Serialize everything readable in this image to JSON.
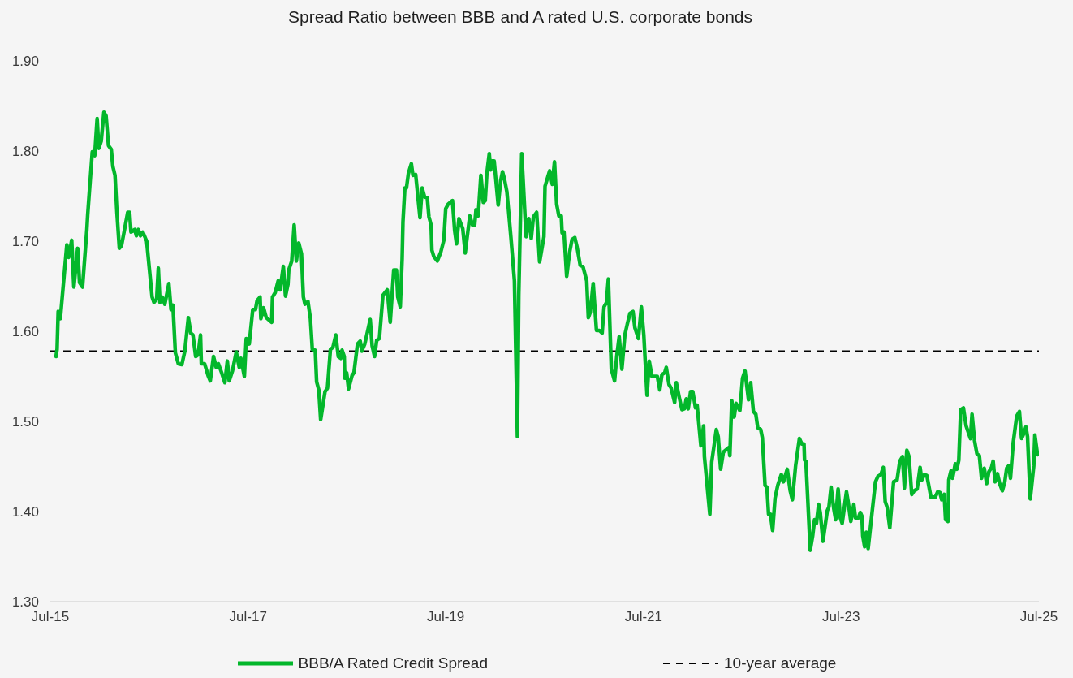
{
  "chart_data": {
    "type": "line",
    "title": "Spread Ratio between BBB and A rated U.S. corporate bonds",
    "x": [
      "2015-07-22",
      "2015-07-26",
      "2015-07-30",
      "2015-08-07",
      "2015-08-31",
      "2015-09-07",
      "2015-09-18",
      "2015-09-26",
      "2015-10-10",
      "2015-10-17",
      "2015-10-28",
      "2015-11-13",
      "2015-11-16",
      "2015-12-03",
      "2015-12-12",
      "2015-12-21",
      "2015-12-27",
      "2016-01-05",
      "2016-01-15",
      "2016-01-23",
      "2016-02-01",
      "2016-02-11",
      "2016-02-17",
      "2016-02-25",
      "2016-03-03",
      "2016-03-12",
      "2016-03-20",
      "2016-04-12",
      "2016-04-19",
      "2016-04-24",
      "2016-05-08",
      "2016-05-14",
      "2016-05-21",
      "2016-05-29",
      "2016-06-07",
      "2016-06-21",
      "2016-07-11",
      "2016-07-18",
      "2016-07-28",
      "2016-08-03",
      "2016-08-09",
      "2016-08-17",
      "2016-08-27",
      "2016-09-11",
      "2016-09-19",
      "2016-09-26",
      "2016-10-05",
      "2016-10-16",
      "2016-10-29",
      "2016-11-09",
      "2016-11-22",
      "2016-12-01",
      "2016-12-09",
      "2016-12-19",
      "2016-12-28",
      "2017-01-06",
      "2017-01-09",
      "2017-01-21",
      "2017-02-04",
      "2017-02-11",
      "2017-02-23",
      "2017-03-05",
      "2017-03-13",
      "2017-03-25",
      "2017-04-06",
      "2017-04-15",
      "2017-04-22",
      "2017-05-04",
      "2017-05-18",
      "2017-05-29",
      "2017-06-04",
      "2017-06-17",
      "2017-06-24",
      "2017-07-05",
      "2017-07-18",
      "2017-07-28",
      "2017-08-03",
      "2017-08-14",
      "2017-08-17",
      "2017-08-27",
      "2017-09-06",
      "2017-09-26",
      "2017-09-29",
      "2017-10-09",
      "2017-10-20",
      "2017-10-27",
      "2017-11-08",
      "2017-11-16",
      "2017-11-25",
      "2017-11-28",
      "2017-12-09",
      "2017-12-18",
      "2017-12-26",
      "2018-01-04",
      "2018-01-14",
      "2018-01-21",
      "2018-01-27",
      "2018-02-07",
      "2018-02-16",
      "2018-02-23",
      "2018-03-06",
      "2018-03-11",
      "2018-03-19",
      "2018-03-26",
      "2018-04-11",
      "2018-04-20",
      "2018-05-01",
      "2018-05-10",
      "2018-05-21",
      "2018-05-30",
      "2018-06-08",
      "2018-06-13",
      "2018-06-21",
      "2018-06-23",
      "2018-06-30",
      "2018-07-07",
      "2018-07-20",
      "2018-07-27",
      "2018-08-09",
      "2018-08-19",
      "2018-08-25",
      "2018-09-05",
      "2018-09-25",
      "2018-10-02",
      "2018-10-11",
      "2018-10-19",
      "2018-10-29",
      "2018-11-11",
      "2018-11-27",
      "2018-12-08",
      "2018-12-21",
      "2018-12-31",
      "2019-01-05",
      "2019-01-14",
      "2019-01-21",
      "2019-01-24",
      "2019-01-31",
      "2019-02-06",
      "2019-02-13",
      "2019-02-24",
      "2019-03-02",
      "2019-03-12",
      "2019-03-28",
      "2019-04-05",
      "2019-04-14",
      "2019-04-24",
      "2019-04-30",
      "2019-05-08",
      "2019-05-11",
      "2019-05-18",
      "2019-05-31",
      "2019-06-13",
      "2019-06-24",
      "2019-07-01",
      "2019-07-10",
      "2019-07-26",
      "2019-08-03",
      "2019-08-10",
      "2019-08-19",
      "2019-09-02",
      "2019-09-11",
      "2019-09-28",
      "2019-10-08",
      "2019-10-16",
      "2019-10-21",
      "2019-10-29",
      "2019-11-08",
      "2019-11-17",
      "2019-11-24",
      "2019-11-30",
      "2019-12-09",
      "2019-12-14",
      "2019-12-19",
      "2019-12-27",
      "2020-01-11",
      "2020-01-20",
      "2020-01-27",
      "2020-02-03",
      "2020-02-12",
      "2020-02-27",
      "2020-03-11",
      "2020-03-22",
      "2020-03-27",
      "2020-04-07",
      "2020-04-23",
      "2020-05-03",
      "2020-05-12",
      "2020-05-20",
      "2020-06-01",
      "2020-06-12",
      "2020-06-28",
      "2020-07-02",
      "2020-07-19",
      "2020-07-29",
      "2020-08-06",
      "2020-08-14",
      "2020-08-22",
      "2020-08-31",
      "2020-09-03",
      "2020-09-10",
      "2020-09-20",
      "2020-10-01",
      "2020-10-10",
      "2020-10-20",
      "2020-10-28",
      "2020-11-09",
      "2020-11-19",
      "2020-12-03",
      "2020-12-09",
      "2020-12-16",
      "2020-12-27",
      "2021-01-08",
      "2021-01-19",
      "2021-01-29",
      "2021-02-05",
      "2021-02-14",
      "2021-02-21",
      "2021-03-04",
      "2021-03-16",
      "2021-03-24",
      "2021-04-02",
      "2021-04-12",
      "2021-04-23",
      "2021-05-02",
      "2021-05-12",
      "2021-05-23",
      "2021-05-30",
      "2021-06-12",
      "2021-06-23",
      "2021-07-02",
      "2021-07-14",
      "2021-07-22",
      "2021-08-01",
      "2021-08-21",
      "2021-08-30",
      "2021-09-07",
      "2021-09-17",
      "2021-09-23",
      "2021-10-03",
      "2021-10-11",
      "2021-10-24",
      "2021-10-30",
      "2021-11-09",
      "2021-11-20",
      "2021-11-29",
      "2021-12-06",
      "2021-12-13",
      "2021-12-22",
      "2021-12-30",
      "2022-01-09",
      "2022-01-15",
      "2022-01-29",
      "2022-02-08",
      "2022-02-11",
      "2022-03-03",
      "2022-03-10",
      "2022-03-27",
      "2022-04-03",
      "2022-04-12",
      "2022-04-22",
      "2022-05-12",
      "2022-05-16",
      "2022-05-23",
      "2022-06-01",
      "2022-06-08",
      "2022-06-22",
      "2022-07-02",
      "2022-07-11",
      "2022-07-24",
      "2022-08-01",
      "2022-08-11",
      "2022-08-20",
      "2022-08-27",
      "2022-09-07",
      "2022-09-13",
      "2022-09-23",
      "2022-09-30",
      "2022-10-06",
      "2022-10-13",
      "2022-10-21",
      "2022-10-30",
      "2022-11-09",
      "2022-11-22",
      "2022-11-30",
      "2022-12-14",
      "2022-12-25",
      "2023-01-02",
      "2023-01-14",
      "2023-01-28",
      "2023-02-06",
      "2023-02-14",
      "2023-02-16",
      "2023-02-21",
      "2023-03-09",
      "2023-03-18",
      "2023-03-25",
      "2023-04-01",
      "2023-04-09",
      "2023-04-15",
      "2023-04-25",
      "2023-05-11",
      "2023-05-17",
      "2023-05-25",
      "2023-06-04",
      "2023-06-11",
      "2023-06-20",
      "2023-06-28",
      "2023-07-05",
      "2023-07-21",
      "2023-07-27",
      "2023-08-06",
      "2023-08-17",
      "2023-08-23",
      "2023-09-03",
      "2023-09-10",
      "2023-09-16",
      "2023-09-19",
      "2023-09-26",
      "2023-10-02",
      "2023-10-09",
      "2023-10-22",
      "2023-11-05",
      "2023-11-14",
      "2023-11-25",
      "2023-12-04",
      "2023-12-11",
      "2023-12-18",
      "2023-12-28",
      "2024-01-11",
      "2024-01-24",
      "2024-02-03",
      "2024-02-13",
      "2024-02-20",
      "2024-02-29",
      "2024-03-08",
      "2024-03-18",
      "2024-03-27",
      "2024-04-07",
      "2024-04-18",
      "2024-04-24",
      "2024-05-04",
      "2024-05-13",
      "2024-05-28",
      "2024-06-13",
      "2024-06-22",
      "2024-06-30",
      "2024-07-07",
      "2024-07-16",
      "2024-07-21",
      "2024-07-30",
      "2024-08-02",
      "2024-08-10",
      "2024-08-16",
      "2024-08-26",
      "2024-09-01",
      "2024-09-08",
      "2024-09-15",
      "2024-09-25",
      "2024-10-05",
      "2024-10-21",
      "2024-10-27",
      "2024-11-05",
      "2024-11-14",
      "2024-11-23",
      "2024-12-01",
      "2024-12-11",
      "2024-12-20",
      "2024-12-28",
      "2025-01-07",
      "2025-01-13",
      "2025-01-20",
      "2025-01-29",
      "2025-02-06",
      "2025-02-16",
      "2025-02-25",
      "2025-03-04",
      "2025-03-12",
      "2025-03-18",
      "2025-03-28",
      "2025-04-10",
      "2025-04-20",
      "2025-04-28",
      "2025-05-07",
      "2025-05-14",
      "2025-05-20",
      "2025-05-30",
      "2025-06-12",
      "2025-06-16",
      "2025-06-26"
    ],
    "series": [
      {
        "name": "BBB/A Rated Credit Spread",
        "color": "#03b72b",
        "values": [
          1.572,
          1.58,
          1.622,
          1.614,
          1.696,
          1.682,
          1.701,
          1.649,
          1.692,
          1.654,
          1.649,
          1.713,
          1.729,
          1.799,
          1.795,
          1.836,
          1.803,
          1.811,
          1.843,
          1.839,
          1.806,
          1.802,
          1.783,
          1.773,
          1.732,
          1.692,
          1.695,
          1.732,
          1.732,
          1.71,
          1.713,
          1.706,
          1.713,
          1.706,
          1.71,
          1.7,
          1.638,
          1.632,
          1.636,
          1.67,
          1.632,
          1.638,
          1.63,
          1.653,
          1.624,
          1.629,
          1.576,
          1.564,
          1.563,
          1.578,
          1.615,
          1.598,
          1.596,
          1.572,
          1.574,
          1.596,
          1.564,
          1.564,
          1.55,
          1.545,
          1.572,
          1.56,
          1.564,
          1.554,
          1.543,
          1.567,
          1.545,
          1.556,
          1.577,
          1.56,
          1.57,
          1.55,
          1.592,
          1.586,
          1.624,
          1.624,
          1.634,
          1.638,
          1.614,
          1.626,
          1.615,
          1.61,
          1.638,
          1.643,
          1.656,
          1.646,
          1.672,
          1.639,
          1.652,
          1.668,
          1.678,
          1.718,
          1.678,
          1.698,
          1.686,
          1.638,
          1.63,
          1.633,
          1.614,
          1.58,
          1.579,
          1.544,
          1.535,
          1.502,
          1.533,
          1.537,
          1.58,
          1.582,
          1.596,
          1.572,
          1.57,
          1.579,
          1.572,
          1.548,
          1.554,
          1.536,
          1.551,
          1.554,
          1.586,
          1.589,
          1.578,
          1.586,
          1.613,
          1.584,
          1.572,
          1.59,
          1.592,
          1.64,
          1.646,
          1.61,
          1.668,
          1.668,
          1.638,
          1.627,
          1.68,
          1.721,
          1.759,
          1.759,
          1.775,
          1.786,
          1.773,
          1.774,
          1.726,
          1.759,
          1.749,
          1.748,
          1.727,
          1.718,
          1.69,
          1.683,
          1.678,
          1.688,
          1.701,
          1.736,
          1.741,
          1.745,
          1.712,
          1.697,
          1.725,
          1.714,
          1.687,
          1.728,
          1.718,
          1.718,
          1.735,
          1.728,
          1.773,
          1.743,
          1.745,
          1.775,
          1.797,
          1.779,
          1.789,
          1.789,
          1.74,
          1.767,
          1.777,
          1.769,
          1.755,
          1.704,
          1.656,
          1.483,
          1.64,
          1.797,
          1.705,
          1.725,
          1.703,
          1.727,
          1.732,
          1.677,
          1.705,
          1.761,
          1.778,
          1.763,
          1.788,
          1.741,
          1.728,
          1.728,
          1.709,
          1.71,
          1.661,
          1.688,
          1.702,
          1.704,
          1.694,
          1.673,
          1.672,
          1.656,
          1.615,
          1.621,
          1.653,
          1.601,
          1.601,
          1.598,
          1.627,
          1.632,
          1.658,
          1.558,
          1.545,
          1.572,
          1.594,
          1.558,
          1.596,
          1.608,
          1.62,
          1.622,
          1.604,
          1.592,
          1.627,
          1.596,
          1.529,
          1.567,
          1.55,
          1.55,
          1.535,
          1.552,
          1.554,
          1.56,
          1.541,
          1.537,
          1.521,
          1.543,
          1.528,
          1.513,
          1.514,
          1.525,
          1.514,
          1.533,
          1.533,
          1.515,
          1.518,
          1.473,
          1.495,
          1.461,
          1.397,
          1.455,
          1.491,
          1.483,
          1.447,
          1.466,
          1.471,
          1.462,
          1.523,
          1.505,
          1.52,
          1.512,
          1.548,
          1.556,
          1.524,
          1.543,
          1.511,
          1.508,
          1.493,
          1.491,
          1.482,
          1.429,
          1.427,
          1.397,
          1.397,
          1.379,
          1.415,
          1.429,
          1.441,
          1.433,
          1.447,
          1.423,
          1.413,
          1.451,
          1.481,
          1.475,
          1.475,
          1.457,
          1.456,
          1.357,
          1.373,
          1.391,
          1.387,
          1.408,
          1.399,
          1.367,
          1.401,
          1.405,
          1.427,
          1.403,
          1.391,
          1.425,
          1.393,
          1.387,
          1.422,
          1.411,
          1.389,
          1.408,
          1.393,
          1.393,
          1.399,
          1.395,
          1.373,
          1.361,
          1.377,
          1.359,
          1.395,
          1.433,
          1.439,
          1.441,
          1.449,
          1.411,
          1.405,
          1.382,
          1.433,
          1.435,
          1.456,
          1.461,
          1.426,
          1.468,
          1.461,
          1.419,
          1.423,
          1.425,
          1.449,
          1.435,
          1.441,
          1.44,
          1.416,
          1.416,
          1.422,
          1.421,
          1.413,
          1.419,
          1.391,
          1.389,
          1.435,
          1.445,
          1.437,
          1.453,
          1.447,
          1.457,
          1.513,
          1.515,
          1.495,
          1.481,
          1.508,
          1.479,
          1.464,
          1.462,
          1.437,
          1.448,
          1.431,
          1.444,
          1.449,
          1.456,
          1.433,
          1.442,
          1.431,
          1.423,
          1.433,
          1.448,
          1.451,
          1.437,
          1.476,
          1.506,
          1.511,
          1.481,
          1.487,
          1.494,
          1.483,
          1.414,
          1.451,
          1.485,
          1.463
        ]
      }
    ],
    "xlim": [
      "2015-07",
      "2025-07"
    ],
    "xticks": [
      {
        "value": "2015-07",
        "label": "Jul-15"
      },
      {
        "value": "2017-07",
        "label": "Jul-17"
      },
      {
        "value": "2019-07",
        "label": "Jul-19"
      },
      {
        "value": "2021-07",
        "label": "Jul-21"
      },
      {
        "value": "2023-07",
        "label": "Jul-23"
      },
      {
        "value": "2025-07",
        "label": "Jul-25"
      }
    ],
    "ylim": [
      1.3,
      1.9
    ],
    "yticks": [
      {
        "value": 1.3,
        "label": "1.30"
      },
      {
        "value": 1.4,
        "label": "1.40"
      },
      {
        "value": 1.5,
        "label": "1.50"
      },
      {
        "value": 1.6,
        "label": "1.60"
      },
      {
        "value": 1.7,
        "label": "1.70"
      },
      {
        "value": 1.8,
        "label": "1.80"
      },
      {
        "value": 1.9,
        "label": "1.90"
      }
    ],
    "ref_lines": [
      {
        "axis": "y",
        "value": 1.578,
        "label": "10-year average",
        "color": "#000000",
        "line_style": "dashed"
      }
    ],
    "legend": "bottom"
  }
}
